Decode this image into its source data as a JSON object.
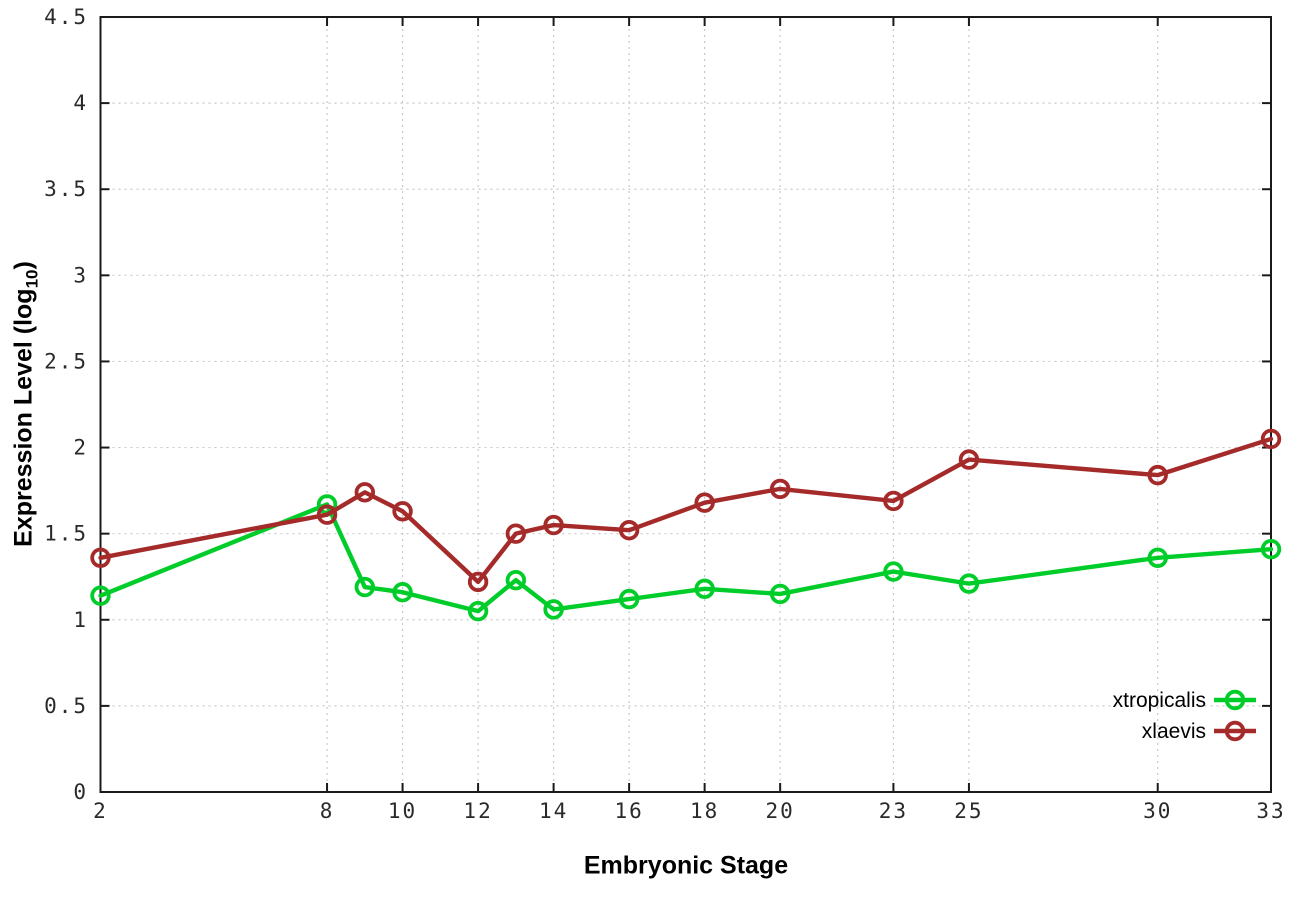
{
  "chart_data": {
    "type": "line",
    "title": "",
    "xlabel": "Embryonic Stage",
    "ylabel": {
      "prefix": "Expression Level (log",
      "sub": "10",
      "suffix": ")"
    },
    "xlim": [
      2,
      33
    ],
    "ylim": [
      0,
      4.5
    ],
    "x": [
      2,
      8,
      9,
      10,
      12,
      13,
      14,
      16,
      18,
      20,
      23,
      25,
      30,
      33
    ],
    "xtick_labels": [
      2,
      8,
      10,
      12,
      14,
      16,
      18,
      20,
      23,
      25,
      30,
      33
    ],
    "ytick_labels": [
      0,
      0.5,
      1,
      1.5,
      2,
      2.5,
      3,
      3.5,
      4,
      4.5
    ],
    "grid": "dotted",
    "legend_position": "inside-bottom-right",
    "series": [
      {
        "name": "xtropicalis",
        "color": "#00cd29",
        "values": [
          1.14,
          1.67,
          1.19,
          1.16,
          1.05,
          1.23,
          1.06,
          1.12,
          1.18,
          1.15,
          1.28,
          1.21,
          1.36,
          1.41
        ]
      },
      {
        "name": "xlaevis",
        "color": "#a52a2a",
        "values": [
          1.36,
          1.61,
          1.74,
          1.63,
          1.22,
          1.5,
          1.55,
          1.52,
          1.68,
          1.76,
          1.69,
          1.93,
          1.84,
          2.05
        ]
      }
    ]
  },
  "colors": {
    "axis": "#1a1a1a",
    "grid": "#c8c8c8",
    "tick_label": "#2a2a2a",
    "legend_text": "#000000"
  }
}
